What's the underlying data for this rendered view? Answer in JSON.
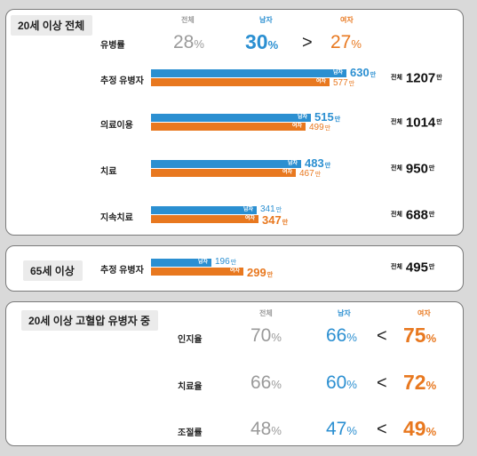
{
  "panel1": {
    "title": "20세 이상 전체",
    "headers": {
      "total": "전체",
      "male": "남자",
      "female": "여자"
    },
    "prevalence": {
      "label": "유병률",
      "total": "28",
      "male": "30",
      "female": "27",
      "pct": "%",
      "op": ">"
    },
    "rows": [
      {
        "label": "추정 유병자",
        "male": 630,
        "female": 577,
        "total": "1207"
      },
      {
        "label": "의료이용",
        "male": 515,
        "female": 499,
        "total": "1014"
      },
      {
        "label": "치료",
        "male": 483,
        "female": 467,
        "total": "950"
      },
      {
        "label": "지속치료",
        "male": 341,
        "female": 347,
        "total": "688"
      }
    ]
  },
  "panel2": {
    "title": "65세 이상",
    "row": {
      "label": "추정 유병자",
      "male": 196,
      "female": 299,
      "total": "495"
    }
  },
  "panel3": {
    "title": "20세 이상 고혈압 유병자 중",
    "headers": {
      "total": "전체",
      "male": "남자",
      "female": "여자"
    },
    "rows": [
      {
        "label": "인지율",
        "total": "70",
        "male": "66",
        "female": "75",
        "op": "<"
      },
      {
        "label": "치료율",
        "total": "66",
        "male": "60",
        "female": "72",
        "op": "<"
      },
      {
        "label": "조절률",
        "total": "48",
        "male": "47",
        "female": "49",
        "op": "<"
      }
    ]
  },
  "common": {
    "male_tag": "남자",
    "female_tag": "여자",
    "unit": "만",
    "total_tag": "전체",
    "pct": "%"
  },
  "colors": {
    "male": "#2b8fd1",
    "female": "#e8781f",
    "total": "#9a9a9a"
  }
}
